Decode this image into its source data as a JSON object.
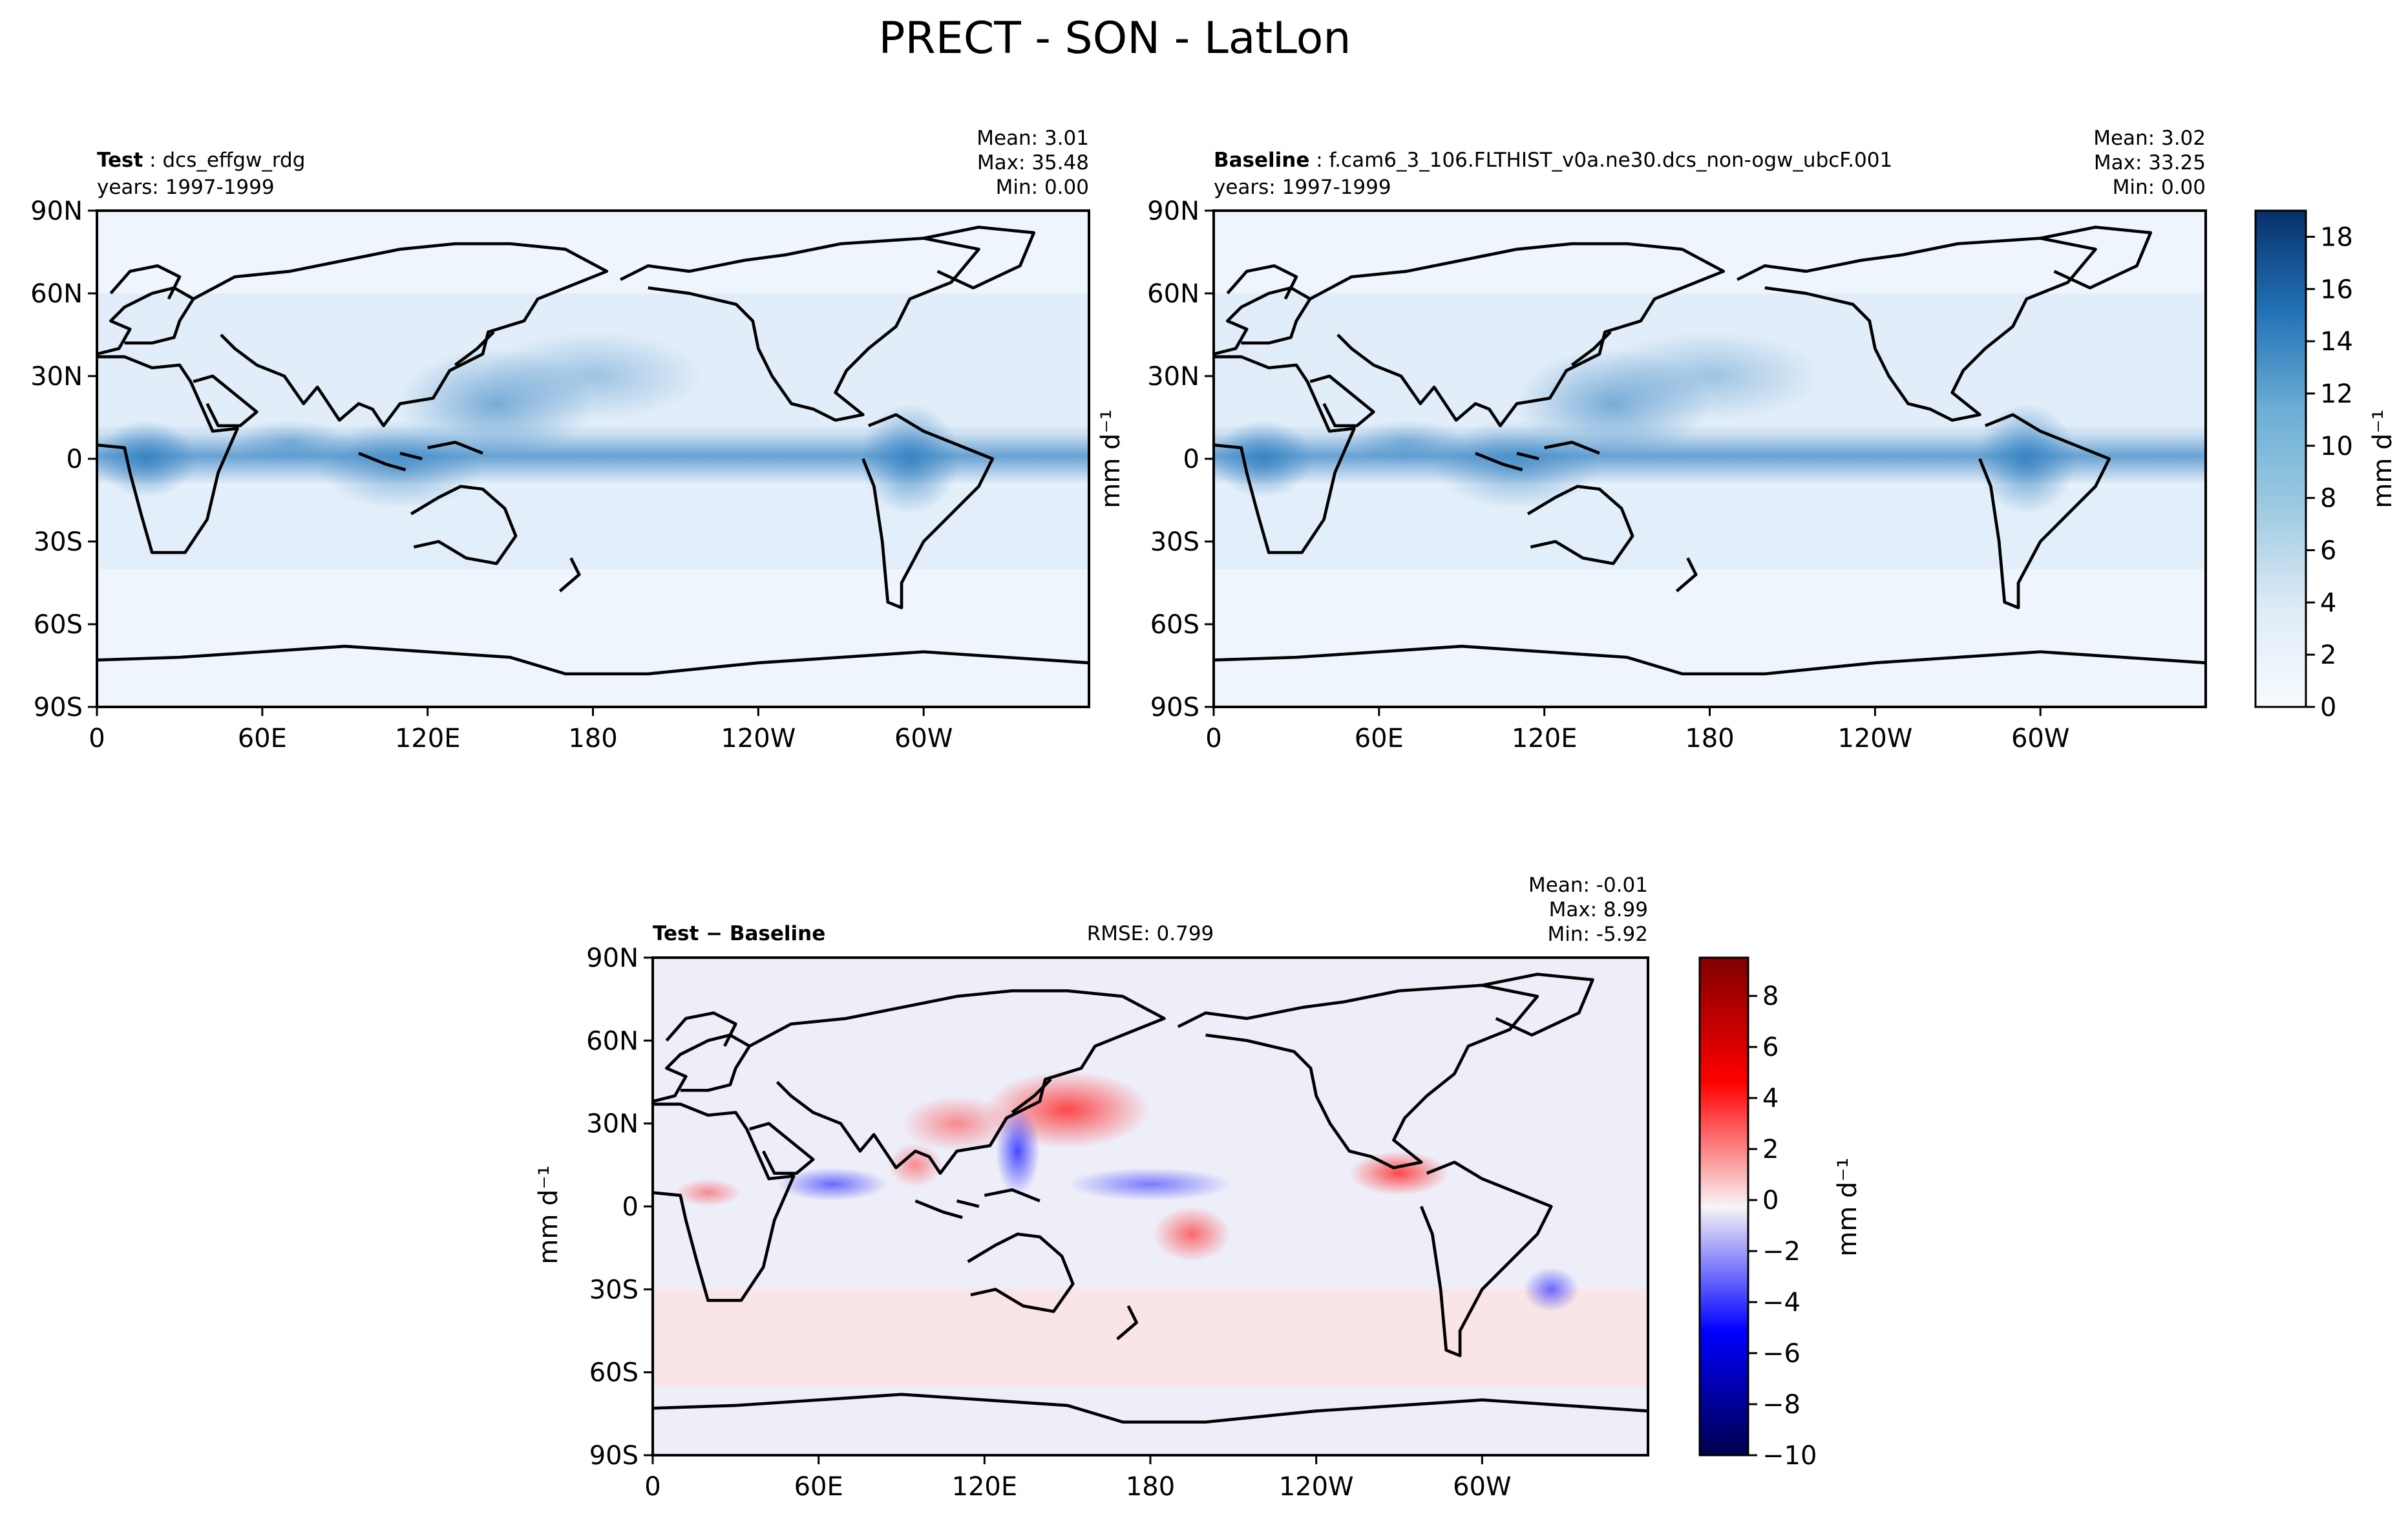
{
  "figure_title": "PRECT - SON - LatLon",
  "chart_data": [
    {
      "type": "heatmap",
      "panel": "test",
      "header": {
        "label": "Test",
        "sep": " : ",
        "name": "dcs_effgw_rdg",
        "years": "years: 1997-1999"
      },
      "stats": {
        "mean": "Mean:  3.01",
        "max": "Max: 35.48",
        "min": "Min:  0.00"
      },
      "xticks": [
        "0",
        "60E",
        "120E",
        "180",
        "120W",
        "60W"
      ],
      "yticks": [
        "90N",
        "60N",
        "30N",
        "0",
        "30S",
        "60S",
        "90S"
      ],
      "xlim": [
        0,
        360
      ],
      "ylim": [
        -90,
        90
      ],
      "colormap": "Blues"
    },
    {
      "type": "heatmap",
      "panel": "baseline",
      "header": {
        "label": "Baseline",
        "sep": " : ",
        "name": "f.cam6_3_106.FLTHIST_v0a.ne30.dcs_non-ogw_ubcF.001",
        "years": "years: 1997-1999"
      },
      "stats": {
        "mean": "Mean:  3.02",
        "max": "Max: 33.25",
        "min": "Min:  0.00"
      },
      "xticks": [
        "0",
        "60E",
        "120E",
        "180",
        "120W",
        "60W"
      ],
      "yticks": [
        "90N",
        "60N",
        "30N",
        "0",
        "30S",
        "60S",
        "90S"
      ],
      "xlim": [
        0,
        360
      ],
      "ylim": [
        -90,
        90
      ],
      "colormap": "Blues",
      "colorbar": {
        "label": "mm d⁻¹",
        "ticks": [
          "0",
          "2",
          "4",
          "6",
          "8",
          "10",
          "12",
          "14",
          "16",
          "18"
        ],
        "range": [
          0,
          19
        ]
      },
      "ylabel": "mm d⁻¹"
    },
    {
      "type": "heatmap",
      "panel": "difference",
      "header": {
        "label": "Test − Baseline",
        "rmse": "RMSE: 0.799"
      },
      "stats": {
        "mean": "Mean: -0.01",
        "max": "Max:  8.99",
        "min": "Min: -5.92"
      },
      "xticks": [
        "0",
        "60E",
        "120E",
        "180",
        "120W",
        "60W"
      ],
      "yticks": [
        "90N",
        "60N",
        "30N",
        "0",
        "30S",
        "60S",
        "90S"
      ],
      "xlim": [
        0,
        360
      ],
      "ylim": [
        -90,
        90
      ],
      "colormap": "seismic",
      "colorbar": {
        "label": "mm d⁻¹",
        "ticks": [
          "8",
          "6",
          "4",
          "2",
          "0",
          "−2",
          "−4",
          "−6",
          "−8",
          "−10"
        ],
        "range": [
          -10,
          9.5
        ]
      },
      "ylabel": "mm d⁻¹"
    }
  ]
}
